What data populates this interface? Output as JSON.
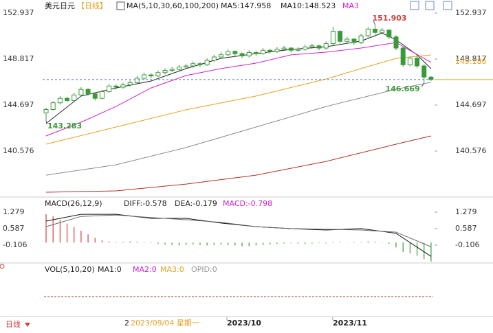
{
  "header": {
    "symbol": "美元日元",
    "period": "【日线】",
    "ma_params": "MA(5,10,30,60,100,200)",
    "ma_values": [
      "MA5:147.958",
      "MA10:148.523",
      "MA3"
    ]
  },
  "macd_header": {
    "params": "MACD(26,12,9)",
    "items": [
      "DIFF:-0.578",
      "DEA:-0.179",
      "MACD:-0.798"
    ]
  },
  "vol_header": {
    "params": "VOL(5,10,20)",
    "items": [
      "MA1:0",
      "MA2:0",
      "MA3:0",
      "OPID:0"
    ]
  },
  "x_axis": {
    "crosshair_prefix": "2",
    "crosshair_date": "2023/09/04 星期一",
    "labels": [
      "2023/10",
      "2023/11"
    ]
  },
  "period_button": "日线",
  "chart_data": [
    {
      "type": "candlestick",
      "ylim": [
        136.58,
        153.49
      ],
      "yticks": [
        152.937,
        148.817,
        144.697,
        140.576
      ],
      "color": "#3a9a3a",
      "candles": [
        [
          144.0,
          144.45,
          143.283,
          144.3
        ],
        [
          144.3,
          145.05,
          144.2,
          144.9
        ],
        [
          144.9,
          145.5,
          144.75,
          145.3
        ],
        [
          145.3,
          145.45,
          144.95,
          145.1
        ],
        [
          145.1,
          145.8,
          145.0,
          145.6
        ],
        [
          145.6,
          146.3,
          145.45,
          146.1
        ],
        [
          146.1,
          146.2,
          145.55,
          145.7
        ],
        [
          145.7,
          145.85,
          145.1,
          145.3
        ],
        [
          145.3,
          146.05,
          145.2,
          145.9
        ],
        [
          145.9,
          146.6,
          145.8,
          146.4
        ],
        [
          146.4,
          146.55,
          146.1,
          146.3
        ],
        [
          146.3,
          146.7,
          146.15,
          146.5
        ],
        [
          146.5,
          146.9,
          146.35,
          146.7
        ],
        [
          146.7,
          147.3,
          146.6,
          147.1
        ],
        [
          147.1,
          147.6,
          146.95,
          147.4
        ],
        [
          147.4,
          147.55,
          147.1,
          147.3
        ],
        [
          147.3,
          147.8,
          147.2,
          147.6
        ],
        [
          147.6,
          148.0,
          147.45,
          147.8
        ],
        [
          147.8,
          148.1,
          147.65,
          147.9
        ],
        [
          147.9,
          148.3,
          147.75,
          148.1
        ],
        [
          148.1,
          148.4,
          147.95,
          148.2
        ],
        [
          148.2,
          148.6,
          148.05,
          148.4
        ],
        [
          148.4,
          148.55,
          148.1,
          148.3
        ],
        [
          148.3,
          148.9,
          148.2,
          148.7
        ],
        [
          148.7,
          149.2,
          148.55,
          149.0
        ],
        [
          149.0,
          149.45,
          148.85,
          149.2
        ],
        [
          149.2,
          149.7,
          149.05,
          149.5
        ],
        [
          149.5,
          149.6,
          149.1,
          149.3
        ],
        [
          149.3,
          149.4,
          148.9,
          149.1
        ],
        [
          149.1,
          149.6,
          148.95,
          149.4
        ],
        [
          149.4,
          149.55,
          149.1,
          149.3
        ],
        [
          149.3,
          149.8,
          149.2,
          149.6
        ],
        [
          149.6,
          149.75,
          149.3,
          149.5
        ],
        [
          149.5,
          149.9,
          149.35,
          149.7
        ],
        [
          149.7,
          150.0,
          149.55,
          149.8
        ],
        [
          149.8,
          149.9,
          149.4,
          149.6
        ],
        [
          149.6,
          149.9,
          149.45,
          149.7
        ],
        [
          149.7,
          150.1,
          149.55,
          149.9
        ],
        [
          149.9,
          150.2,
          149.75,
          150.0
        ],
        [
          150.0,
          150.1,
          149.6,
          149.8
        ],
        [
          149.8,
          150.4,
          149.65,
          150.2
        ],
        [
          150.2,
          151.7,
          150.05,
          151.3
        ],
        [
          151.3,
          151.4,
          150.2,
          150.4
        ],
        [
          150.4,
          150.8,
          150.25,
          150.6
        ],
        [
          150.6,
          150.7,
          150.1,
          150.3
        ],
        [
          150.3,
          151.1,
          150.15,
          150.9
        ],
        [
          150.9,
          151.7,
          150.75,
          151.5
        ],
        [
          151.5,
          151.903,
          151.0,
          151.2
        ],
        [
          151.2,
          151.6,
          151.05,
          151.4
        ],
        [
          151.4,
          151.5,
          150.6,
          150.8
        ],
        [
          150.8,
          150.95,
          149.6,
          149.8
        ],
        [
          149.8,
          149.95,
          148.1,
          148.3
        ],
        [
          148.3,
          149.05,
          148.15,
          148.9
        ],
        [
          148.9,
          149.2,
          148.0,
          148.2
        ],
        [
          148.2,
          148.35,
          146.669,
          147.2
        ],
        [
          147.2,
          147.3,
          146.85,
          146.98
        ]
      ],
      "series": [
        {
          "color": "#222222",
          "x": [
            0,
            5,
            10,
            15,
            20,
            25,
            30,
            35,
            40,
            45,
            48,
            50,
            53,
            55
          ],
          "values": [
            143.04,
            145.5,
            146.23,
            146.85,
            147.96,
            148.88,
            149.31,
            149.68,
            149.92,
            150.42,
            151.15,
            150.54,
            149.19,
            147.958
          ]
        },
        {
          "color": "#d020c8",
          "x": [
            0,
            5,
            10,
            15,
            20,
            25,
            30,
            35,
            40,
            45,
            50,
            55
          ],
          "values": [
            141.93,
            143.16,
            144.57,
            146.23,
            147.34,
            147.96,
            148.45,
            149.19,
            149.43,
            149.8,
            150.29,
            148.523
          ]
        },
        {
          "color": "#e8a020",
          "x": [
            0,
            10,
            20,
            30,
            40,
            45,
            50,
            55
          ],
          "values": [
            141.19,
            142.73,
            144.27,
            145.5,
            147.03,
            147.96,
            148.88,
            149.186
          ]
        },
        {
          "color": "#8a8a8a",
          "x": [
            0,
            10,
            20,
            30,
            40,
            50,
            55
          ],
          "values": [
            138.42,
            139.35,
            140.89,
            142.73,
            144.57,
            146.11,
            146.73
          ]
        },
        {
          "color": "#b03020",
          "x": [
            0,
            10,
            20,
            30,
            40,
            50,
            55
          ],
          "values": [
            136.89,
            137.01,
            137.62,
            138.42,
            139.65,
            141.19,
            141.93
          ]
        }
      ]
    },
    {
      "type": "macd",
      "ylim": [
        -0.827,
        1.769
      ],
      "yticks": [
        1.279,
        0.587,
        -0.106
      ],
      "up_color": "#d04040",
      "down_color": "#3a9a3a",
      "values": [
        1.2,
        1.1,
        0.95,
        0.8,
        0.65,
        0.5,
        0.35,
        0.2,
        0.1,
        0.05,
        0.02,
        0.03,
        0.05,
        0.04,
        0.02,
        -0.02,
        -0.05,
        -0.08,
        -0.1,
        -0.12,
        -0.1,
        -0.08,
        -0.1,
        -0.12,
        -0.1,
        -0.08,
        -0.1,
        -0.12,
        -0.15,
        -0.15,
        -0.12,
        -0.1,
        -0.08,
        -0.06,
        -0.04,
        -0.03,
        -0.05,
        -0.06,
        -0.04,
        -0.02,
        -0.03,
        0.02,
        0.03,
        0.01,
        -0.02,
        0.02,
        0.05,
        0.04,
        0.01,
        -0.05,
        -0.2,
        -0.4,
        -0.45,
        -0.55,
        -0.7,
        -0.798
      ],
      "series": [
        {
          "color": "#111111",
          "x": [
            0,
            5,
            10,
            15,
            20,
            25,
            30,
            35,
            40,
            45,
            50,
            55
          ],
          "values": [
            0.904,
            1.19,
            1.19,
            1.02,
            1.02,
            0.82,
            0.67,
            0.587,
            0.53,
            0.59,
            0.39,
            -0.578
          ]
        },
        {
          "color": "#666666",
          "x": [
            0,
            5,
            10,
            15,
            20,
            25,
            30,
            35,
            40,
            45,
            50,
            55
          ],
          "values": [
            0.67,
            1.1,
            1.16,
            1.05,
            0.96,
            0.85,
            0.67,
            0.59,
            0.56,
            0.53,
            0.44,
            -0.179
          ]
        }
      ]
    }
  ]
}
